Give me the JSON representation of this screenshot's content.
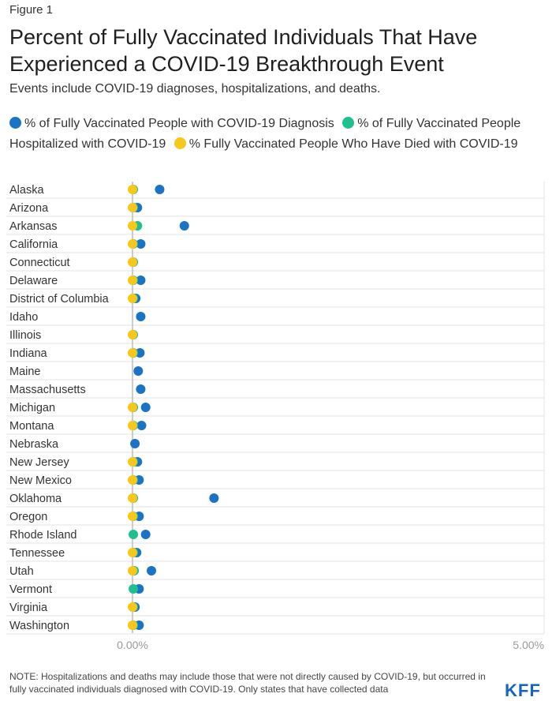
{
  "figure_label": "Figure 1",
  "title": "Percent of Fully Vaccinated Individuals That Have Experienced a COVID-19 Breakthrough Event",
  "subtitle": "Events include COVID-19 diagnoses, hospitalizations, and deaths.",
  "note": "NOTE: Hospitalizations and deaths may include those that were not directly caused by COVID-19, but occurred in fully vaccinated individuals diagnosed with COVID-19. Only states that have collected data",
  "brand": "KFF",
  "colors": {
    "diagnosis": "#1a73c4",
    "hospitalized": "#1fbf8f",
    "died": "#f7c71a",
    "grid": "#e3e3e3",
    "axis": "#bbbbbb",
    "tick": "#999999"
  },
  "chart_data": {
    "type": "scatter",
    "x_range": [
      0,
      5
    ],
    "x_ticks": [
      "0.00%",
      "5.00%"
    ],
    "grid": true,
    "legend_position": "top",
    "categories": [
      "Alaska",
      "Arizona",
      "Arkansas",
      "California",
      "Connecticut",
      "Delaware",
      "District of Columbia",
      "Idaho",
      "Illinois",
      "Indiana",
      "Maine",
      "Massachusetts",
      "Michigan",
      "Montana",
      "Nebraska",
      "New Jersey",
      "New Mexico",
      "Oklahoma",
      "Oregon",
      "Rhode Island",
      "Tennessee",
      "Utah",
      "Vermont",
      "Virginia",
      "Washington"
    ],
    "series": [
      {
        "name": "% of Fully Vaccinated People with COVID-19 Diagnosis",
        "key": "diagnosis",
        "values": [
          0.33,
          0.06,
          0.63,
          0.1,
          null,
          0.1,
          0.04,
          0.1,
          null,
          0.09,
          0.07,
          0.1,
          0.16,
          0.11,
          0.03,
          0.06,
          0.08,
          0.99,
          0.08,
          0.16,
          0.05,
          0.23,
          0.08,
          0.03,
          0.08
        ]
      },
      {
        "name": "% of Fully Vaccinated People Hospitalized with COVID-19",
        "key": "hospitalized",
        "values": [
          0.01,
          0.01,
          0.06,
          0.01,
          0.01,
          0.01,
          0.01,
          null,
          0.01,
          0.01,
          null,
          null,
          0.01,
          0.01,
          null,
          0.01,
          0.01,
          0.01,
          0.01,
          0.01,
          0.01,
          0.02,
          0.01,
          0.01,
          0.01
        ]
      },
      {
        "name": "% Fully Vaccinated People Who Have Died with COVID-19",
        "key": "died",
        "values": [
          0.0,
          0.0,
          0.0,
          0.0,
          0.0,
          0.0,
          0.0,
          null,
          0.0,
          0.0,
          null,
          null,
          0.0,
          0.0,
          null,
          0.0,
          0.0,
          0.0,
          0.0,
          null,
          0.0,
          0.0,
          null,
          0.0,
          0.0
        ]
      }
    ]
  }
}
